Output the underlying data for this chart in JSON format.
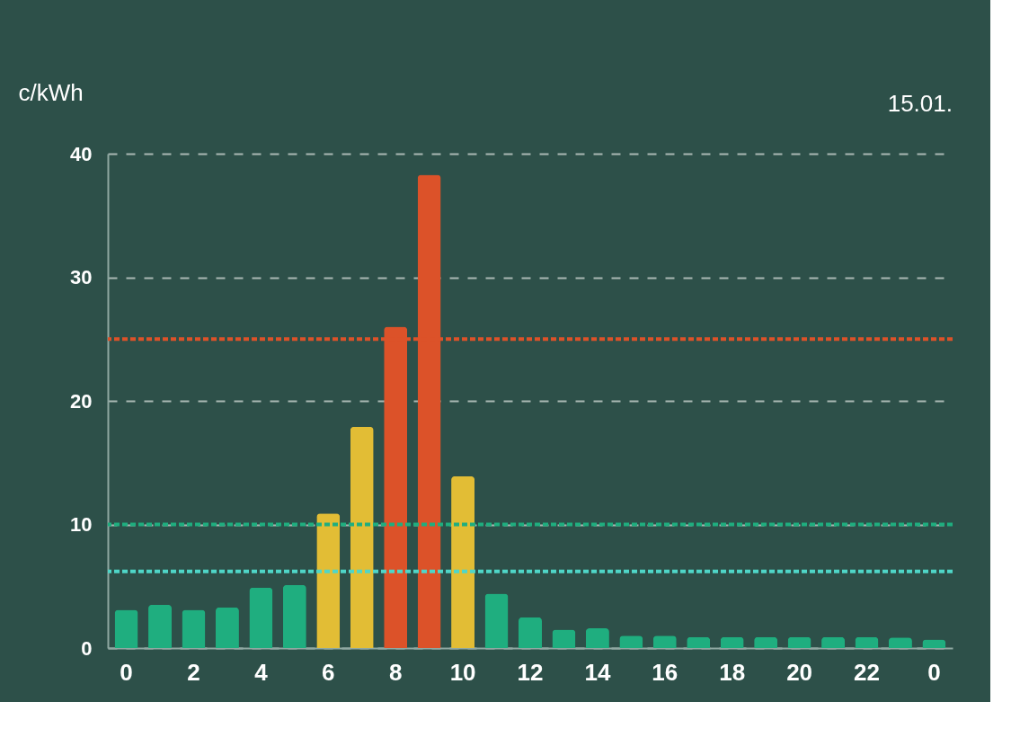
{
  "chart_data": {
    "type": "bar",
    "ylabel": "c/kWh",
    "annotations": [
      "15.01."
    ],
    "categories": [
      "0",
      null,
      "2",
      null,
      "4",
      null,
      "6",
      null,
      "8",
      null,
      "10",
      null,
      "12",
      null,
      "14",
      null,
      "16",
      null,
      "18",
      null,
      "20",
      null,
      "22",
      null,
      "0"
    ],
    "values": [
      3.1,
      3.5,
      3.1,
      3.3,
      4.9,
      5.1,
      10.9,
      17.9,
      26.0,
      38.3,
      13.9,
      4.4,
      2.5,
      1.5,
      1.6,
      1.0,
      1.0,
      0.9,
      0.9,
      0.9,
      0.9,
      0.9,
      0.9,
      0.85,
      0.7
    ],
    "colors": [
      "#1fae7f",
      "#1fae7f",
      "#1fae7f",
      "#1fae7f",
      "#1fae7f",
      "#1fae7f",
      "#e2bd35",
      "#e2bd35",
      "#dc5229",
      "#dc5229",
      "#e2bd35",
      "#1fae7f",
      "#1fae7f",
      "#1fae7f",
      "#1fae7f",
      "#1fae7f",
      "#1fae7f",
      "#1fae7f",
      "#1fae7f",
      "#1fae7f",
      "#1fae7f",
      "#1fae7f",
      "#1fae7f",
      "#1fae7f",
      "#1fae7f"
    ],
    "ylim": [
      0,
      40
    ],
    "yticks": [
      0,
      10,
      20,
      30,
      40
    ],
    "grid": "y",
    "ref_lines": [
      {
        "axis": "y",
        "value": 25,
        "label": null,
        "color": "#dc5229",
        "line_style": "dotted"
      },
      {
        "axis": "y",
        "value": 10,
        "label": null,
        "color": "#1fae7f",
        "line_style": "dotted"
      },
      {
        "axis": "y",
        "value": 6.2,
        "label": null,
        "color": "#4fd6c8",
        "line_style": "dotted"
      }
    ]
  }
}
